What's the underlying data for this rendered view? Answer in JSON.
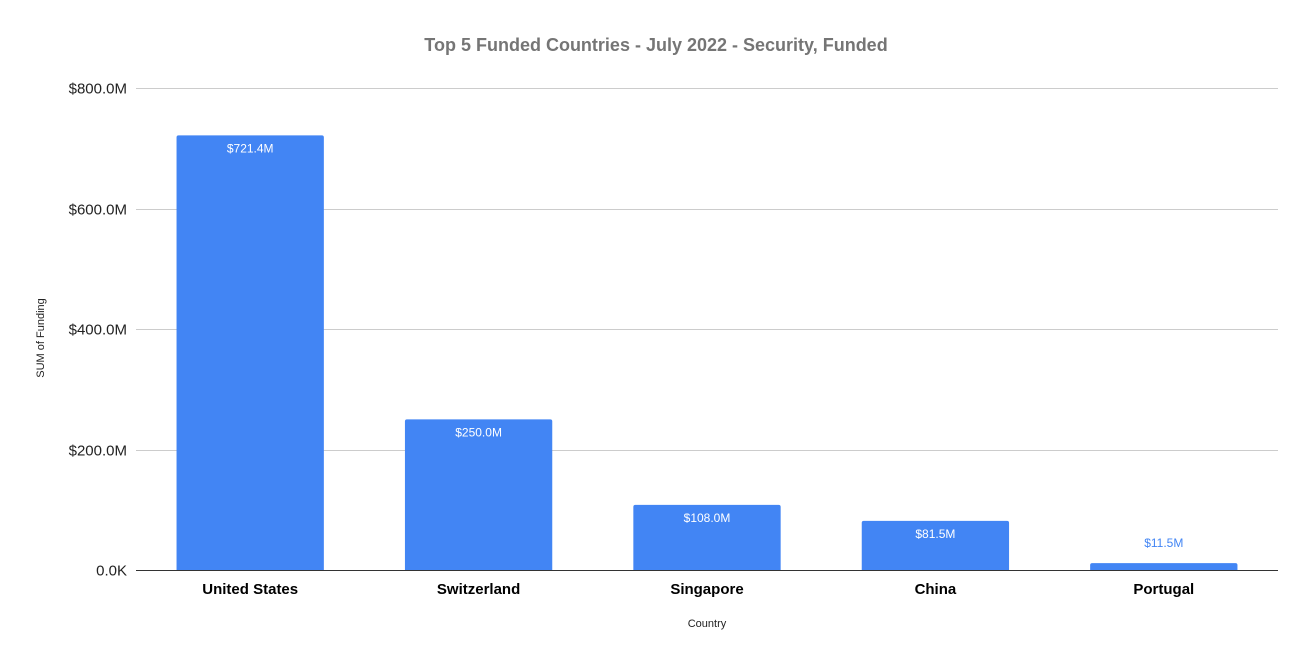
{
  "chart_data": {
    "type": "bar",
    "title": "Top 5 Funded Countries - July 2022 - Security, Funded",
    "xlabel": "Country",
    "ylabel": "SUM of Funding",
    "categories": [
      "United States",
      "Switzerland",
      "Singapore",
      "China",
      "Portugal"
    ],
    "values": [
      721.4,
      250.0,
      108.0,
      81.5,
      11.5
    ],
    "value_unit": "$M",
    "data_labels": [
      "$721.4M",
      "$250.0M",
      "$108.0M",
      "$81.5M",
      "$11.5M"
    ],
    "ylim": [
      0,
      800
    ],
    "yticks": [
      0,
      200,
      400,
      600,
      800
    ],
    "ytick_labels": [
      "0.0K",
      "$200.0M",
      "$400.0M",
      "$600.0M",
      "$800.0M"
    ],
    "grid": true,
    "legend": "none",
    "colors": {
      "bar": "#4285f4",
      "label_inside": "#ffffff",
      "label_outside": "#4285f4",
      "grid": "#cccccc",
      "title": "#757575"
    }
  }
}
